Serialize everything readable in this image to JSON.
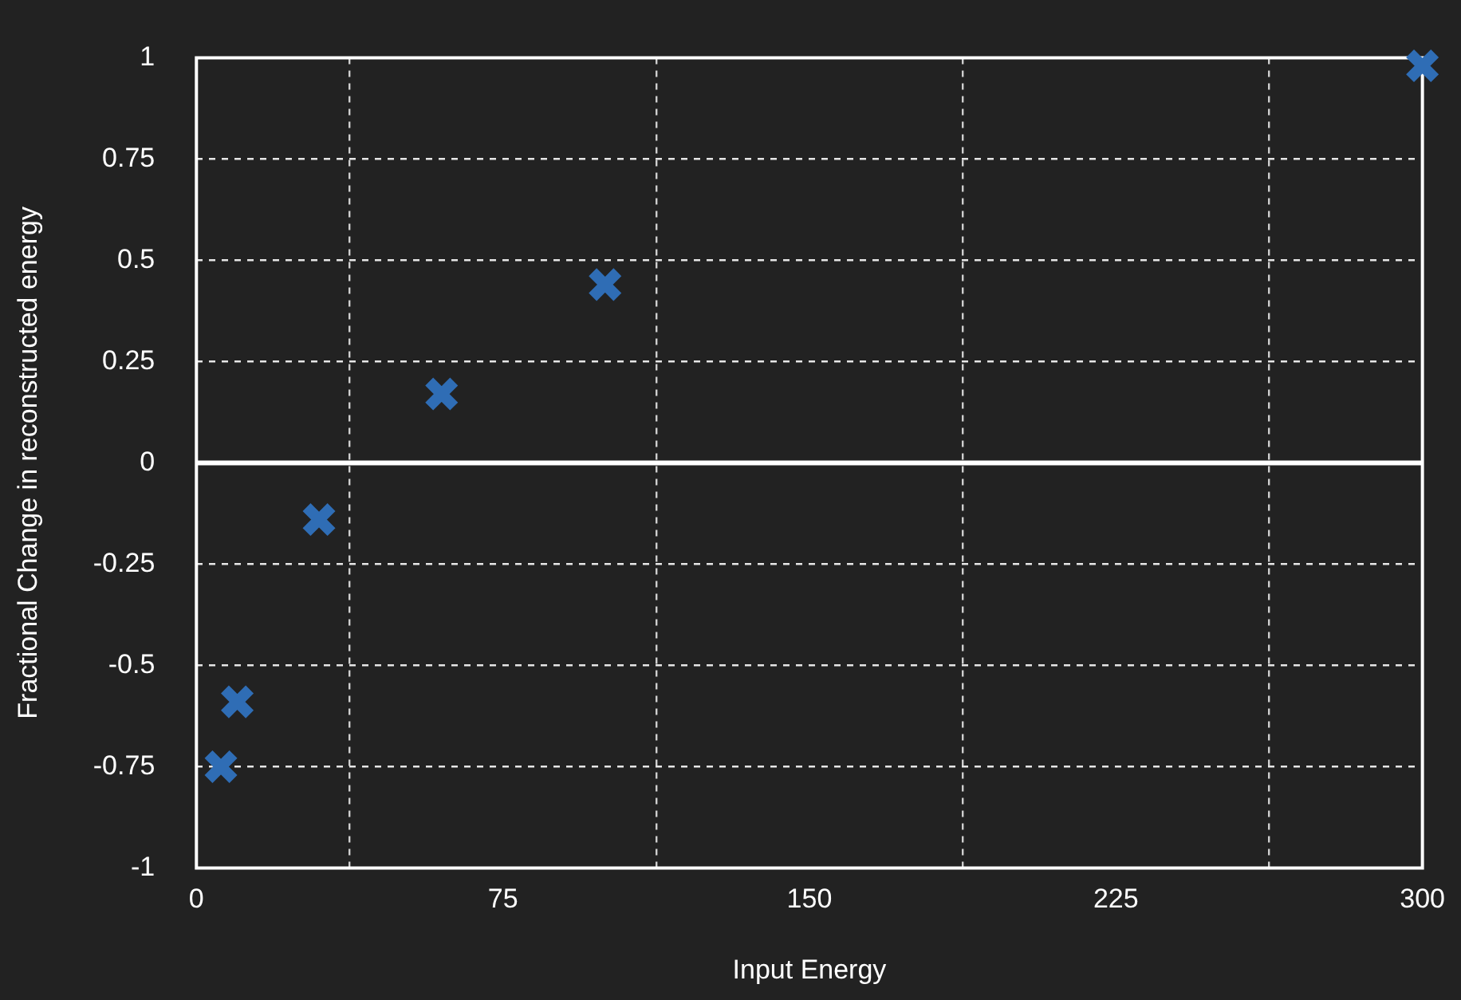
{
  "chart_data": {
    "type": "scatter",
    "xlabel": "Input Energy",
    "ylabel": "Fractional Change in reconstructed energy",
    "x": [
      6,
      10,
      30,
      60,
      100,
      300
    ],
    "series": [
      {
        "color": "#2f6db5",
        "values": [
          -0.75,
          -0.59,
          -0.14,
          0.17,
          0.44,
          0.98
        ]
      }
    ],
    "marker": "cross",
    "xlim": [
      0,
      300
    ],
    "ylim": [
      -1,
      1
    ],
    "xticks": [
      0,
      {
        "value": 37.5,
        "label": null
      },
      75,
      {
        "value": 112.5,
        "label": null
      },
      150,
      {
        "value": 187.5,
        "label": null
      },
      225,
      {
        "value": 262.5,
        "label": null
      },
      300
    ],
    "yticks": [
      -1,
      -0.75,
      -0.5,
      -0.25,
      0,
      0.25,
      0.5,
      0.75,
      1
    ],
    "grid": true,
    "legend": false,
    "ref_lines": [
      {
        "axis": "y",
        "value": 0,
        "color": "#ffffff",
        "line_style": "solid"
      }
    ]
  }
}
